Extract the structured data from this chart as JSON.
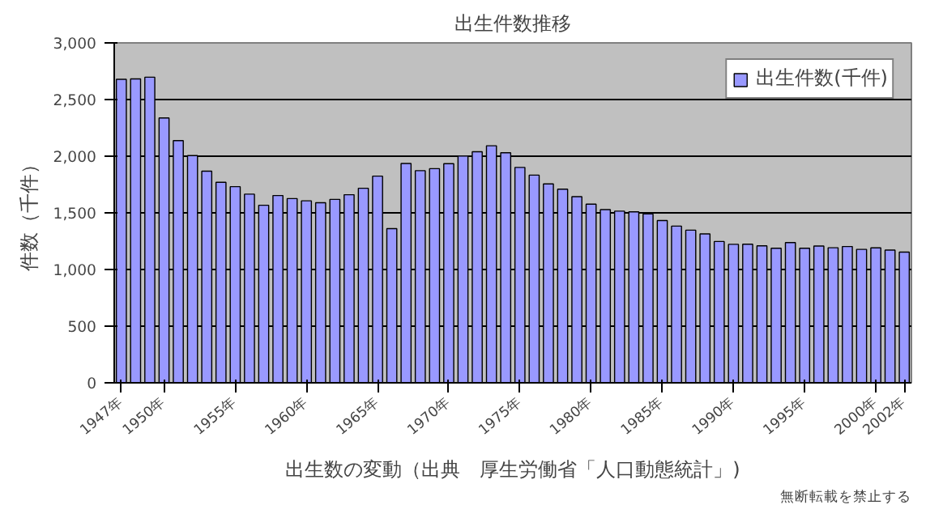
{
  "chart_data": {
    "type": "bar",
    "title": "出生件数推移",
    "xlabel": "出生数の変動（出典　厚生労働省「人口動態統計」)",
    "ylabel": "件数（千件）",
    "categories": [
      "1947年",
      null,
      null,
      "1950年",
      null,
      null,
      null,
      null,
      "1955年",
      null,
      null,
      null,
      null,
      "1960年",
      null,
      null,
      null,
      null,
      "1965年",
      null,
      null,
      null,
      null,
      "1970年",
      null,
      null,
      null,
      null,
      "1975年",
      null,
      null,
      null,
      null,
      "1980年",
      null,
      null,
      null,
      null,
      "1985年",
      null,
      null,
      null,
      null,
      "1990年",
      null,
      null,
      null,
      null,
      "1995年",
      null,
      null,
      null,
      null,
      "2000年",
      null,
      "2002年"
    ],
    "series": [
      {
        "name": "出生件数(千件)",
        "color": "#9999ff",
        "values": [
          2679,
          2682,
          2697,
          2338,
          2138,
          2005,
          1868,
          1770,
          1731,
          1665,
          1567,
          1653,
          1626,
          1606,
          1589,
          1619,
          1660,
          1717,
          1824,
          1361,
          1936,
          1872,
          1890,
          1934,
          2001,
          2039,
          2092,
          2030,
          1901,
          1833,
          1755,
          1709,
          1643,
          1577,
          1529,
          1515,
          1509,
          1490,
          1432,
          1383,
          1347,
          1314,
          1247,
          1222,
          1223,
          1209,
          1188,
          1238,
          1187,
          1207,
          1192,
          1203,
          1178,
          1191,
          1171,
          1154
        ]
      }
    ],
    "ylim": [
      0,
      3000
    ],
    "yticks": [
      {
        "value": 0,
        "label": "0"
      },
      {
        "value": 500,
        "label": "500"
      },
      {
        "value": 1000,
        "label": "1,000"
      },
      {
        "value": 1500,
        "label": "1,500"
      },
      {
        "value": 2000,
        "label": "2,000"
      },
      {
        "value": 2500,
        "label": "2,500"
      },
      {
        "value": 3000,
        "label": "3,000"
      }
    ],
    "grid": "y",
    "legend": "top right",
    "annotations": [
      "無断転載を禁止する"
    ]
  }
}
